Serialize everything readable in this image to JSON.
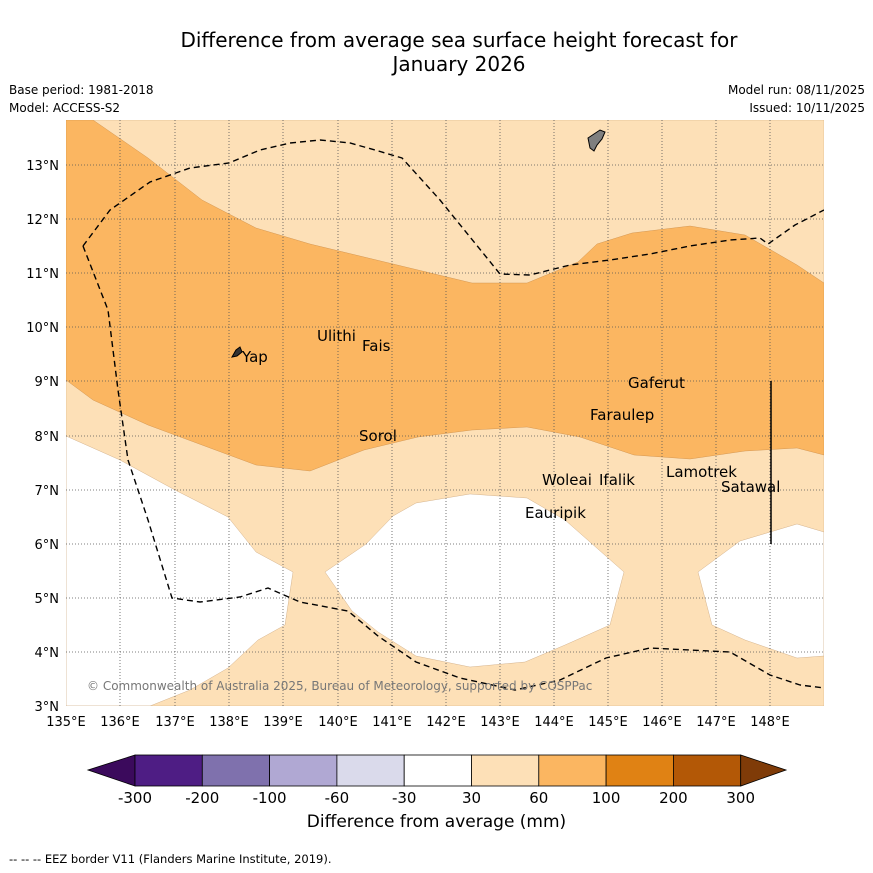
{
  "title": {
    "line1": "Difference from average sea surface height forecast for",
    "line2": "January 2026"
  },
  "meta": {
    "base_period": "Base period: 1981-2018",
    "model": "Model: ACCESS-S2",
    "model_run": "Model run: 08/11/2025",
    "issued": "Issued: 10/11/2025"
  },
  "map": {
    "lon_ticks": [
      "135°E",
      "136°E",
      "137°E",
      "138°E",
      "139°E",
      "140°E",
      "141°E",
      "142°E",
      "143°E",
      "144°E",
      "145°E",
      "146°E",
      "147°E",
      "148°E"
    ],
    "lat_ticks": [
      "3°N",
      "4°N",
      "5°N",
      "6°N",
      "7°N",
      "8°N",
      "9°N",
      "10°N",
      "11°N",
      "12°N",
      "13°N"
    ],
    "places": [
      "Yap",
      "Ulithi",
      "Fais",
      "Sorol",
      "Gaferut",
      "Faraulep",
      "Lamotrek",
      "Satawal",
      "Woleai",
      "Ifalik",
      "Eauripik"
    ],
    "copyright": "© Commonwealth of Australia 2025, Bureau of Meteorology, supported by COSPPac"
  },
  "colorbar": {
    "labels": [
      "-300",
      "-200",
      "-100",
      "-60",
      "-30",
      "30",
      "60",
      "100",
      "200",
      "300"
    ],
    "colors": [
      "#3b0a5c",
      "#4e1d84",
      "#7f71ad",
      "#b0a8d3",
      "#dadaeb",
      "#ffffff",
      "#fde0b7",
      "#fbb661",
      "#e08214",
      "#b35806",
      "#7f3b08"
    ],
    "title": "Difference from average (mm)"
  },
  "footnote": "--  --  -- EEZ border V11 (Flanders Marine Institute, 2019)."
}
